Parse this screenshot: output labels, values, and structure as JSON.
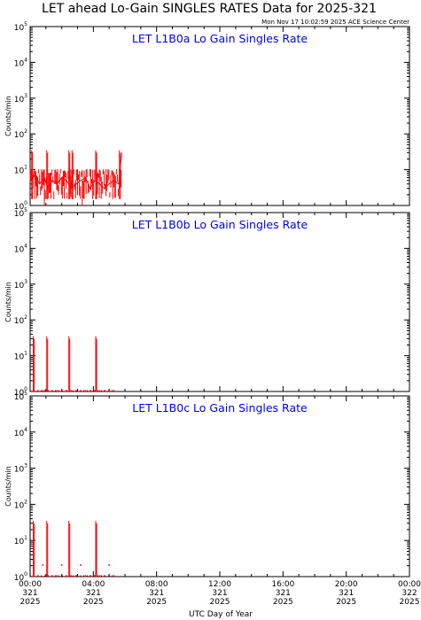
{
  "header": {
    "title": "LET ahead Lo-Gain SINGLES RATES Data for 2025-321",
    "timestamp": "Mon Nov 17 10:02:59 2025 ACE Science Center"
  },
  "colors": {
    "trace": "#ff0000",
    "panel_title": "#0000ff",
    "axes": "#000000",
    "background": "#ffffff"
  },
  "chart_data": [
    {
      "type": "line",
      "title": "LET L1B0a Lo Gain Singles Rate",
      "ylabel": "Counts/min",
      "yscale": "log",
      "ylim": [
        1,
        100000
      ],
      "y_tick_labels": [
        "10^0",
        "10^1",
        "10^2",
        "10^3",
        "10^4",
        "10^5"
      ],
      "xlim_hours": [
        0,
        24
      ],
      "series": [
        {
          "style": "noisy-band",
          "x_hours": [
            0.0,
            0.3,
            0.6,
            0.9,
            1.1,
            1.4,
            1.7,
            2.0,
            2.3,
            2.6,
            2.9,
            3.2,
            3.5,
            3.8,
            4.1,
            4.4,
            4.7,
            5.0,
            5.3,
            5.6,
            5.8
          ],
          "values": [
            5,
            7,
            4,
            6,
            3,
            5,
            4,
            6,
            5,
            3,
            4,
            5,
            6,
            3,
            5,
            4,
            3,
            4,
            5,
            4,
            30
          ],
          "spikes_hours": [
            0.1,
            1.05,
            2.45,
            2.65,
            4.15,
            5.65
          ],
          "spike_value": 35,
          "band_low": 1.5,
          "band_high": 8
        }
      ]
    },
    {
      "type": "line",
      "title": "LET L1B0b Lo Gain Singles Rate",
      "ylabel": "Counts/min",
      "yscale": "log",
      "ylim": [
        1,
        100000
      ],
      "y_tick_labels": [
        "10^0",
        "10^1",
        "10^2",
        "10^3",
        "10^4",
        "10^5"
      ],
      "xlim_hours": [
        0,
        24
      ],
      "series": [
        {
          "style": "sparse",
          "x_hours": [
            0.2,
            0.5,
            0.8,
            1.1,
            1.4,
            1.7,
            2.0,
            2.3,
            2.6,
            2.9,
            3.2,
            3.5,
            3.8,
            4.1,
            4.4,
            4.7,
            5.0,
            5.3
          ],
          "values": [
            1,
            1,
            1,
            1,
            1,
            1,
            1,
            1,
            1,
            1,
            1,
            1,
            1,
            1,
            1,
            1,
            1,
            1
          ],
          "spikes_hours": [
            0.2,
            1.05,
            2.45,
            4.15
          ],
          "spike_value": 35,
          "band_low": 1,
          "band_high": 1.5
        }
      ]
    },
    {
      "type": "line",
      "title": "LET L1B0c Lo Gain Singles Rate",
      "ylabel": "Counts/min",
      "yscale": "log",
      "ylim": [
        1,
        100000
      ],
      "y_tick_labels": [
        "10^0",
        "10^1",
        "10^2",
        "10^3",
        "10^4",
        "10^5"
      ],
      "xlim_hours": [
        0,
        24
      ],
      "series": [
        {
          "style": "sparse",
          "x_hours": [
            0.2,
            0.5,
            0.8,
            1.1,
            1.4,
            1.7,
            2.0,
            2.3,
            2.6,
            2.9,
            3.2,
            3.5,
            3.8,
            4.1,
            4.4,
            4.7,
            5.0,
            5.3
          ],
          "values": [
            1,
            1,
            2,
            1,
            1,
            1,
            2,
            1,
            1,
            1,
            2,
            1,
            1,
            1,
            1,
            1,
            2,
            1
          ],
          "spikes_hours": [
            0.2,
            1.05,
            2.45,
            4.15
          ],
          "spike_value": 35,
          "band_low": 1,
          "band_high": 2
        }
      ]
    }
  ],
  "x_axis": {
    "label": "UTC Day of Year",
    "ticks": [
      {
        "hour": 0,
        "time": "00:00",
        "doy": "321",
        "year": "2025"
      },
      {
        "hour": 4,
        "time": "04:00",
        "doy": "321",
        "year": "2025"
      },
      {
        "hour": 8,
        "time": "08:00",
        "doy": "321",
        "year": "2025"
      },
      {
        "hour": 12,
        "time": "12:00",
        "doy": "321",
        "year": "2025"
      },
      {
        "hour": 16,
        "time": "16:00",
        "doy": "321",
        "year": "2025"
      },
      {
        "hour": 20,
        "time": "20:00",
        "doy": "321",
        "year": "2025"
      },
      {
        "hour": 24,
        "time": "00:00",
        "doy": "322",
        "year": "2025"
      }
    ]
  }
}
